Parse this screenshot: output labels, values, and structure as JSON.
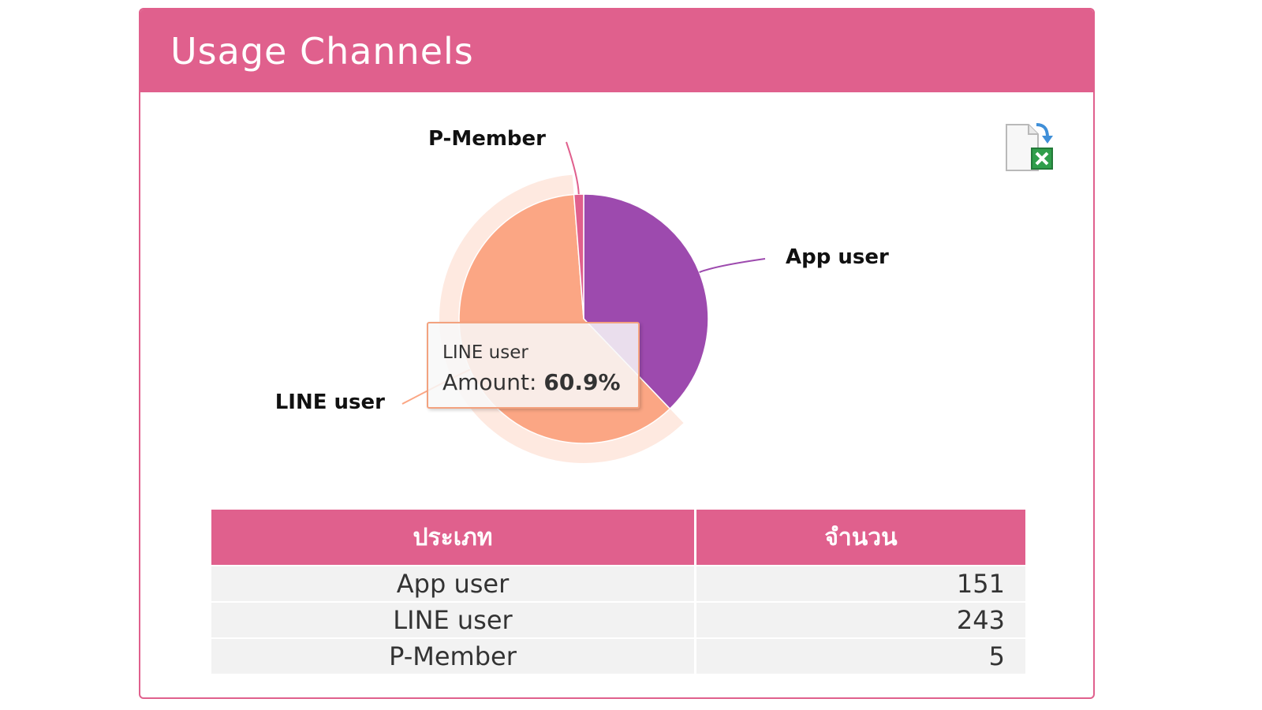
{
  "header": {
    "title": "Usage  Channels"
  },
  "export": {
    "icon": "excel-export-icon"
  },
  "colors": {
    "accent": "#e0608d",
    "app": "#9d4aae",
    "line": "#fba684",
    "pmember": "#e0608d"
  },
  "chart_data": {
    "type": "pie",
    "title": "",
    "slices": [
      {
        "label": "App user",
        "value": 151,
        "color": "#9d4aae"
      },
      {
        "label": "LINE user",
        "value": 243,
        "color": "#fba684"
      },
      {
        "label": "P-Member",
        "value": 5,
        "color": "#e0608d"
      }
    ],
    "hovered": "LINE user",
    "tooltip": {
      "name": "LINE user",
      "prefix": "Amount:",
      "value": "60.9%"
    }
  },
  "table": {
    "headers": [
      "ประเภท",
      "จำนวน"
    ],
    "rows": [
      [
        "App user",
        "151"
      ],
      [
        "LINE user",
        "243"
      ],
      [
        "P-Member",
        "5"
      ]
    ]
  }
}
